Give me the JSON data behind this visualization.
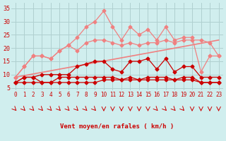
{
  "x": [
    0,
    1,
    2,
    3,
    4,
    5,
    6,
    7,
    8,
    9,
    10,
    11,
    12,
    13,
    14,
    15,
    16,
    17,
    18,
    19,
    20,
    21,
    22,
    23
  ],
  "line1": [
    9,
    13,
    17,
    17,
    16,
    19,
    21,
    24,
    28,
    30,
    34,
    28,
    23,
    28,
    25,
    27,
    23,
    28,
    23,
    24,
    24,
    11,
    17,
    17
  ],
  "line2": [
    9,
    13,
    17,
    17,
    16,
    19,
    21,
    19,
    22,
    23,
    23,
    22,
    21,
    22,
    21,
    22,
    22,
    23,
    22,
    23,
    23,
    23,
    22,
    17
  ],
  "line3": [
    7,
    9,
    9,
    10,
    10,
    10,
    10,
    13,
    14,
    15,
    15,
    12,
    11,
    15,
    15,
    16,
    12,
    16,
    11,
    13,
    13,
    9,
    9,
    9
  ],
  "line4": [
    7,
    9,
    9,
    7,
    7,
    9,
    9,
    9,
    9,
    9,
    9,
    9,
    8,
    9,
    8,
    9,
    9,
    9,
    8,
    9,
    9,
    7,
    7,
    7
  ],
  "line5": [
    7,
    7,
    7,
    7,
    7,
    7,
    7,
    7,
    7,
    7,
    8,
    8,
    8,
    8,
    8,
    8,
    8,
    8,
    8,
    8,
    8,
    7,
    7,
    7
  ],
  "line6_x": [
    0,
    23
  ],
  "line6_y": [
    9,
    23
  ],
  "arrows": [
    45,
    45,
    45,
    45,
    45,
    45,
    45,
    45,
    45,
    45,
    0,
    0,
    0,
    0,
    0,
    0,
    45,
    45,
    45,
    45,
    0,
    0,
    0,
    0
  ],
  "color_light": "#f08080",
  "color_dark": "#cc0000",
  "color_trendline": "#f08080",
  "bg_color": "#d0eeee",
  "grid_color": "#b0d0d0",
  "xlabel": "Vent moyen/en rafales ( km/h )",
  "ylabel": "",
  "yticks": [
    5,
    10,
    15,
    20,
    25,
    30,
    35
  ],
  "xlim": [
    -0.5,
    23.5
  ],
  "ylim": [
    4,
    37
  ]
}
